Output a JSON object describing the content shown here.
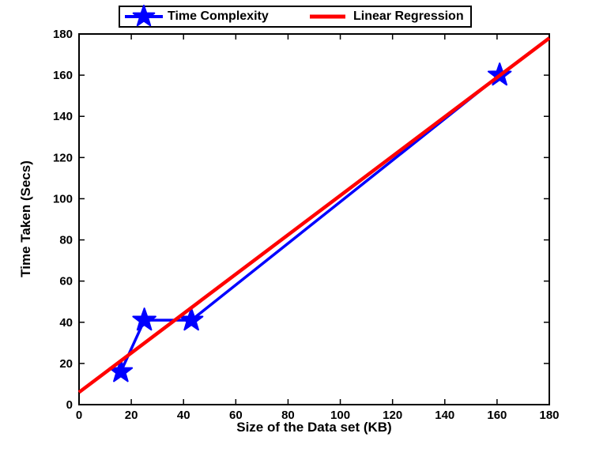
{
  "chart_data": {
    "type": "line",
    "title": "",
    "xlabel": "Size of the Data set (KB)",
    "ylabel": "Time Taken (Secs)",
    "xlim": [
      0,
      180
    ],
    "ylim": [
      0,
      180
    ],
    "xticks": [
      0,
      20,
      40,
      60,
      80,
      100,
      120,
      140,
      160,
      180
    ],
    "yticks": [
      0,
      20,
      40,
      60,
      80,
      100,
      120,
      140,
      160,
      180
    ],
    "grid": false,
    "legend_position": "top-outside",
    "series": [
      {
        "name": "Time Complexity",
        "type": "line",
        "marker": "star",
        "color": "#0000ff",
        "points": [
          [
            16,
            16
          ],
          [
            25,
            41
          ],
          [
            43,
            41
          ],
          [
            161,
            160
          ]
        ]
      },
      {
        "name": "Linear Regression",
        "type": "line",
        "marker": "none",
        "color": "#ff0000",
        "points": [
          [
            0,
            6
          ],
          [
            180,
            178
          ]
        ]
      }
    ]
  },
  "colors": {
    "axis": "#000000",
    "background": "#ffffff",
    "series_blue": "#0000ff",
    "series_red": "#ff0000"
  }
}
